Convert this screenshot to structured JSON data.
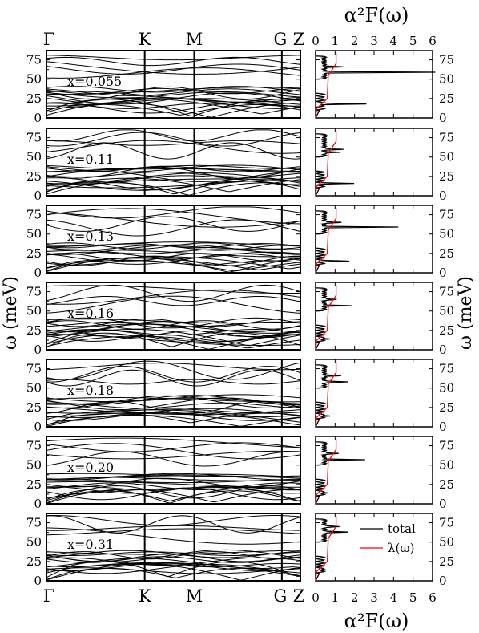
{
  "chart_data": {
    "type": "line",
    "left_column": {
      "kind": "phonon dispersion",
      "ylabel": "ω (meV)",
      "yticks": [
        "0",
        "25",
        "50",
        "75"
      ],
      "ylim": [
        0,
        87
      ],
      "high_symmetry_points": [
        "Γ",
        "K",
        "M",
        "G",
        "Z"
      ],
      "high_symmetry_fractions": [
        0.0,
        0.387,
        0.582,
        0.927,
        1.0
      ]
    },
    "right_column": {
      "kind": "Eliashberg function",
      "title": "α²F(ω)",
      "xlabel": "α²F(ω)",
      "xticks": [
        "0",
        "1",
        "2",
        "3",
        "4",
        "5",
        "6"
      ],
      "xlim": [
        0,
        6
      ],
      "ylim": [
        0,
        87
      ],
      "yticks": [
        "0",
        "25",
        "50",
        "75"
      ],
      "legend": [
        "total",
        "λ(ω)"
      ],
      "legend_position": "top-right of bottom panel",
      "colors": {
        "total": "#000000",
        "lambda": "#ff0000"
      }
    },
    "panels": [
      {
        "label": "x=0.055",
        "peaks": [
          {
            "w": 59,
            "a": 5.6
          },
          {
            "w": 18,
            "a": 2.5
          },
          {
            "w": 66,
            "a": 0.9
          }
        ],
        "lambda_final": 1.05
      },
      {
        "label": "x=0.11",
        "peaks": [
          {
            "w": 60,
            "a": 1.0
          },
          {
            "w": 56,
            "a": 0.85
          },
          {
            "w": 16,
            "a": 1.55
          }
        ],
        "lambda_final": 1.05
      },
      {
        "label": "x=0.13",
        "peaks": [
          {
            "w": 59,
            "a": 3.7
          },
          {
            "w": 65,
            "a": 0.95
          },
          {
            "w": 15,
            "a": 1.4
          }
        ],
        "lambda_final": 1.05
      },
      {
        "label": "x=0.16",
        "peaks": [
          {
            "w": 57,
            "a": 1.3
          },
          {
            "w": 65,
            "a": 0.7
          },
          {
            "w": 14,
            "a": 0.7
          }
        ],
        "lambda_final": 1.05
      },
      {
        "label": "x=0.18",
        "peaks": [
          {
            "w": 58,
            "a": 1.35
          },
          {
            "w": 66,
            "a": 0.8
          },
          {
            "w": 14,
            "a": 0.7
          }
        ],
        "lambda_final": 1.05
      },
      {
        "label": "x=0.20",
        "peaks": [
          {
            "w": 57,
            "a": 2.0
          },
          {
            "w": 65,
            "a": 0.8
          },
          {
            "w": 14,
            "a": 0.6
          }
        ],
        "lambda_final": 1.05
      },
      {
        "label": "x=0.31",
        "peaks": [
          {
            "w": 63,
            "a": 1.3
          },
          {
            "w": 70,
            "a": 0.9
          },
          {
            "w": 14,
            "a": 0.5
          }
        ],
        "lambda_final": 1.05
      }
    ]
  }
}
